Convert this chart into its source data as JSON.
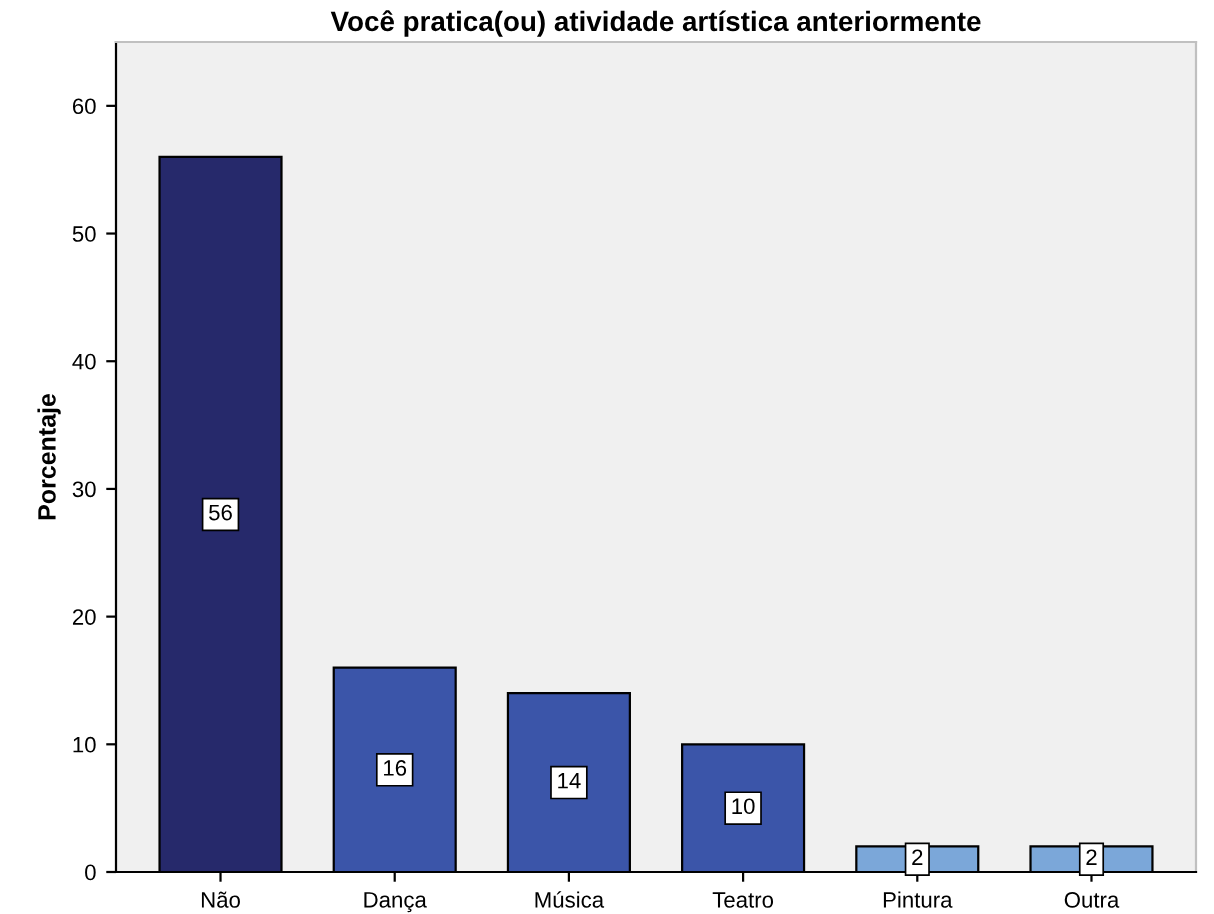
{
  "chart_data": {
    "type": "bar",
    "title": "Você pratica(ou) atividade artística anteriormente",
    "ylabel": "Porcentaje",
    "categories": [
      "Não",
      "Dança",
      "Música",
      "Teatro",
      "Pintura",
      "Outra"
    ],
    "values": [
      56,
      16,
      14,
      10,
      2,
      2
    ],
    "colors": [
      "#26296b",
      "#3b55a9",
      "#3b55a9",
      "#3b55a9",
      "#7ba7d9",
      "#7ba7d9"
    ],
    "ylim": [
      0,
      65
    ],
    "yticks": [
      0,
      10,
      20,
      30,
      40,
      50,
      60
    ],
    "grid": false,
    "data_labels": true
  }
}
